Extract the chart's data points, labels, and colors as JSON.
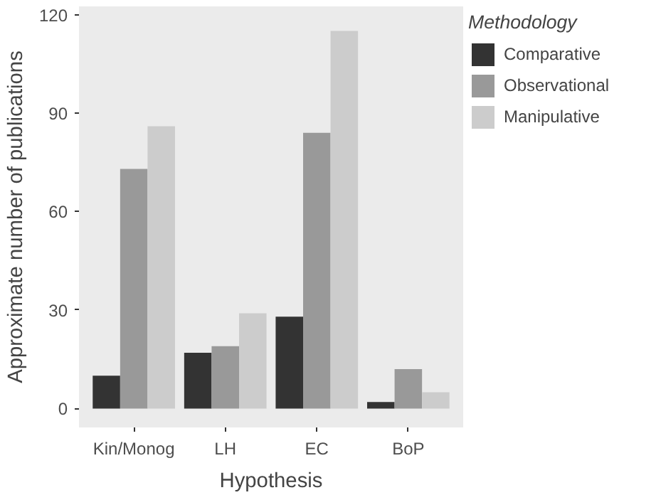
{
  "chart_data": {
    "type": "bar",
    "xlabel": "Hypothesis",
    "ylabel": "Approximate number of publications",
    "legend_title": "Methodology",
    "categories": [
      "Kin/Monog",
      "LH",
      "EC",
      "BoP"
    ],
    "series": [
      {
        "name": "Comparative",
        "color": "#333333",
        "values": [
          10,
          17,
          28,
          2
        ]
      },
      {
        "name": "Observational",
        "color": "#999999",
        "values": [
          73,
          19,
          84,
          12
        ]
      },
      {
        "name": "Manipulative",
        "color": "#cccccc",
        "values": [
          86,
          29,
          115,
          5
        ]
      }
    ],
    "ylim": [
      -5.75,
      122.5
    ],
    "yticks": [
      0,
      30,
      60,
      90,
      120
    ],
    "grid": false,
    "legend": "right"
  }
}
